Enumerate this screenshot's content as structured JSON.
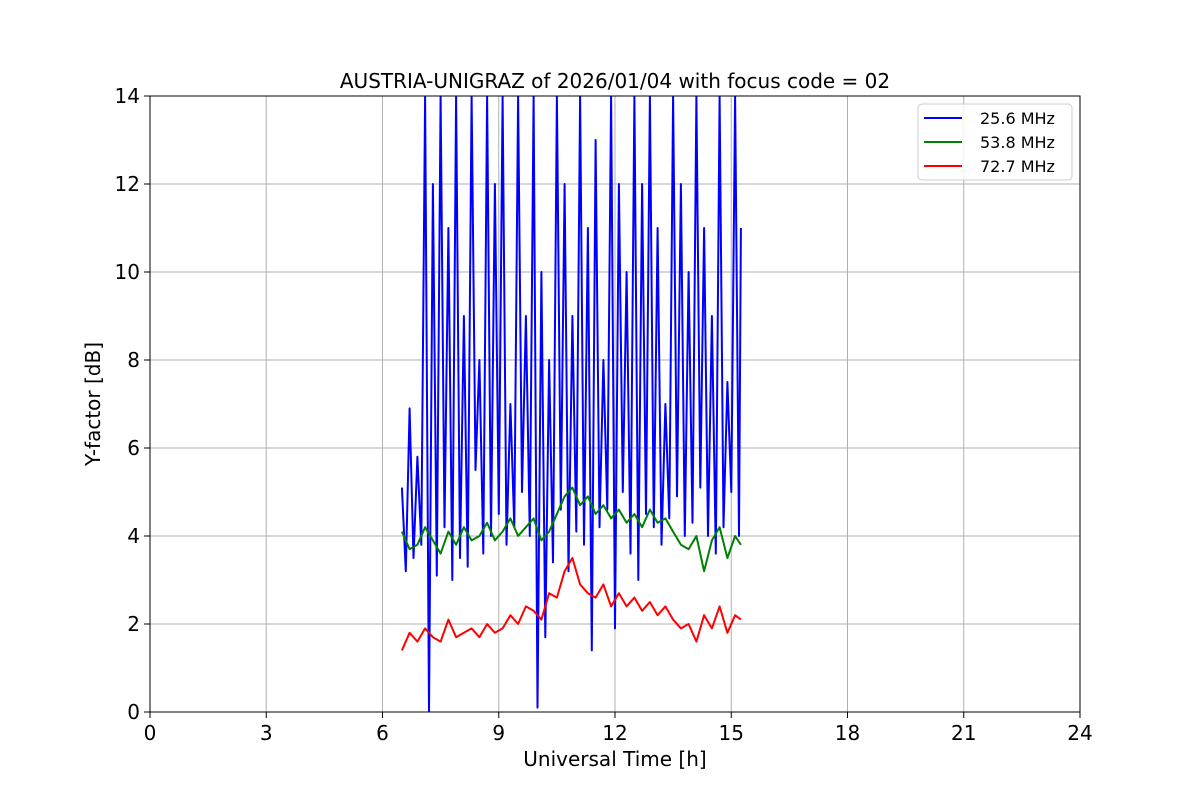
{
  "chart_data": {
    "type": "line",
    "title": "AUSTRIA-UNIGRAZ of 2026/01/04 with focus code = 02",
    "xlabel": "Universal Time [h]",
    "ylabel": "Y-factor [dB]",
    "xlim": [
      0,
      24
    ],
    "ylim": [
      0,
      14
    ],
    "xticks": [
      0,
      3,
      6,
      9,
      12,
      15,
      18,
      21,
      24
    ],
    "yticks": [
      0,
      2,
      4,
      6,
      8,
      10,
      12,
      14
    ],
    "grid": true,
    "legend_position": "top-right",
    "series": [
      {
        "name": "25.6 MHz",
        "color": "#0000ff",
        "x": [
          6.5,
          6.6,
          6.7,
          6.8,
          6.9,
          7.0,
          7.1,
          7.2,
          7.3,
          7.4,
          7.5,
          7.6,
          7.7,
          7.8,
          7.9,
          8.0,
          8.1,
          8.2,
          8.3,
          8.4,
          8.5,
          8.6,
          8.7,
          8.8,
          8.9,
          9.0,
          9.1,
          9.2,
          9.3,
          9.4,
          9.5,
          9.6,
          9.7,
          9.8,
          9.9,
          10.0,
          10.1,
          10.2,
          10.3,
          10.4,
          10.5,
          10.6,
          10.7,
          10.8,
          10.9,
          11.0,
          11.1,
          11.2,
          11.3,
          11.4,
          11.5,
          11.6,
          11.7,
          11.8,
          11.9,
          12.0,
          12.1,
          12.2,
          12.3,
          12.4,
          12.5,
          12.6,
          12.7,
          12.8,
          12.9,
          13.0,
          13.1,
          13.2,
          13.3,
          13.4,
          13.5,
          13.6,
          13.7,
          13.8,
          13.9,
          14.0,
          14.1,
          14.2,
          14.3,
          14.4,
          14.5,
          14.6,
          14.7,
          14.8,
          14.9,
          15.0,
          15.1,
          15.2,
          15.25
        ],
        "y": [
          5.1,
          3.2,
          6.9,
          3.5,
          5.8,
          3.8,
          14,
          0,
          12,
          3.1,
          14,
          4.2,
          11,
          3.0,
          14,
          3.5,
          9,
          3.3,
          14,
          5.5,
          8,
          3.6,
          14,
          4.0,
          12,
          4.5,
          14,
          3.8,
          7,
          4.2,
          14,
          5.0,
          9,
          4.0,
          14,
          0.1,
          10,
          1.7,
          8,
          3.4,
          14,
          4.6,
          12,
          3.2,
          9,
          4.1,
          14,
          3.8,
          11,
          1.4,
          13,
          4.2,
          8,
          4.6,
          14,
          1.9,
          12,
          5.0,
          10,
          3.6,
          14,
          3.0,
          12,
          4.5,
          14,
          4.2,
          11,
          3.8,
          7,
          4.4,
          14,
          4.9,
          12,
          4.0,
          10,
          4.3,
          14,
          5.1,
          11,
          4.0,
          9,
          3.6,
          14,
          4.2,
          7.5,
          5.0,
          14,
          4.0,
          11
        ]
      },
      {
        "name": "53.8 MHz",
        "color": "#008000",
        "x": [
          6.5,
          6.7,
          6.9,
          7.1,
          7.3,
          7.5,
          7.7,
          7.9,
          8.1,
          8.3,
          8.5,
          8.7,
          8.9,
          9.1,
          9.3,
          9.5,
          9.7,
          9.9,
          10.1,
          10.3,
          10.5,
          10.7,
          10.9,
          11.1,
          11.3,
          11.5,
          11.7,
          11.9,
          12.1,
          12.3,
          12.5,
          12.7,
          12.9,
          13.1,
          13.3,
          13.5,
          13.7,
          13.9,
          14.1,
          14.3,
          14.5,
          14.7,
          14.9,
          15.1,
          15.25
        ],
        "y": [
          4.1,
          3.7,
          3.8,
          4.2,
          3.9,
          3.6,
          4.1,
          3.8,
          4.2,
          3.9,
          4.0,
          4.3,
          3.9,
          4.1,
          4.4,
          4.0,
          4.2,
          4.4,
          3.9,
          4.1,
          4.5,
          4.9,
          5.1,
          4.7,
          4.9,
          4.5,
          4.7,
          4.4,
          4.6,
          4.3,
          4.5,
          4.2,
          4.6,
          4.3,
          4.4,
          4.1,
          3.8,
          3.7,
          4.0,
          3.2,
          3.9,
          4.2,
          3.5,
          4.0,
          3.8
        ]
      },
      {
        "name": "72.7 MHz",
        "color": "#ff0000",
        "x": [
          6.5,
          6.7,
          6.9,
          7.1,
          7.3,
          7.5,
          7.7,
          7.9,
          8.1,
          8.3,
          8.5,
          8.7,
          8.9,
          9.1,
          9.3,
          9.5,
          9.7,
          9.9,
          10.1,
          10.3,
          10.5,
          10.7,
          10.9,
          11.1,
          11.3,
          11.5,
          11.7,
          11.9,
          12.1,
          12.3,
          12.5,
          12.7,
          12.9,
          13.1,
          13.3,
          13.5,
          13.7,
          13.9,
          14.1,
          14.3,
          14.5,
          14.7,
          14.9,
          15.1,
          15.25
        ],
        "y": [
          1.4,
          1.8,
          1.6,
          1.9,
          1.7,
          1.6,
          2.1,
          1.7,
          1.8,
          1.9,
          1.7,
          2.0,
          1.8,
          1.9,
          2.2,
          2.0,
          2.4,
          2.3,
          2.1,
          2.7,
          2.6,
          3.2,
          3.5,
          2.9,
          2.7,
          2.6,
          2.9,
          2.4,
          2.7,
          2.4,
          2.6,
          2.3,
          2.5,
          2.2,
          2.4,
          2.1,
          1.9,
          2.0,
          1.6,
          2.2,
          1.9,
          2.4,
          1.8,
          2.2,
          2.1
        ]
      }
    ]
  }
}
